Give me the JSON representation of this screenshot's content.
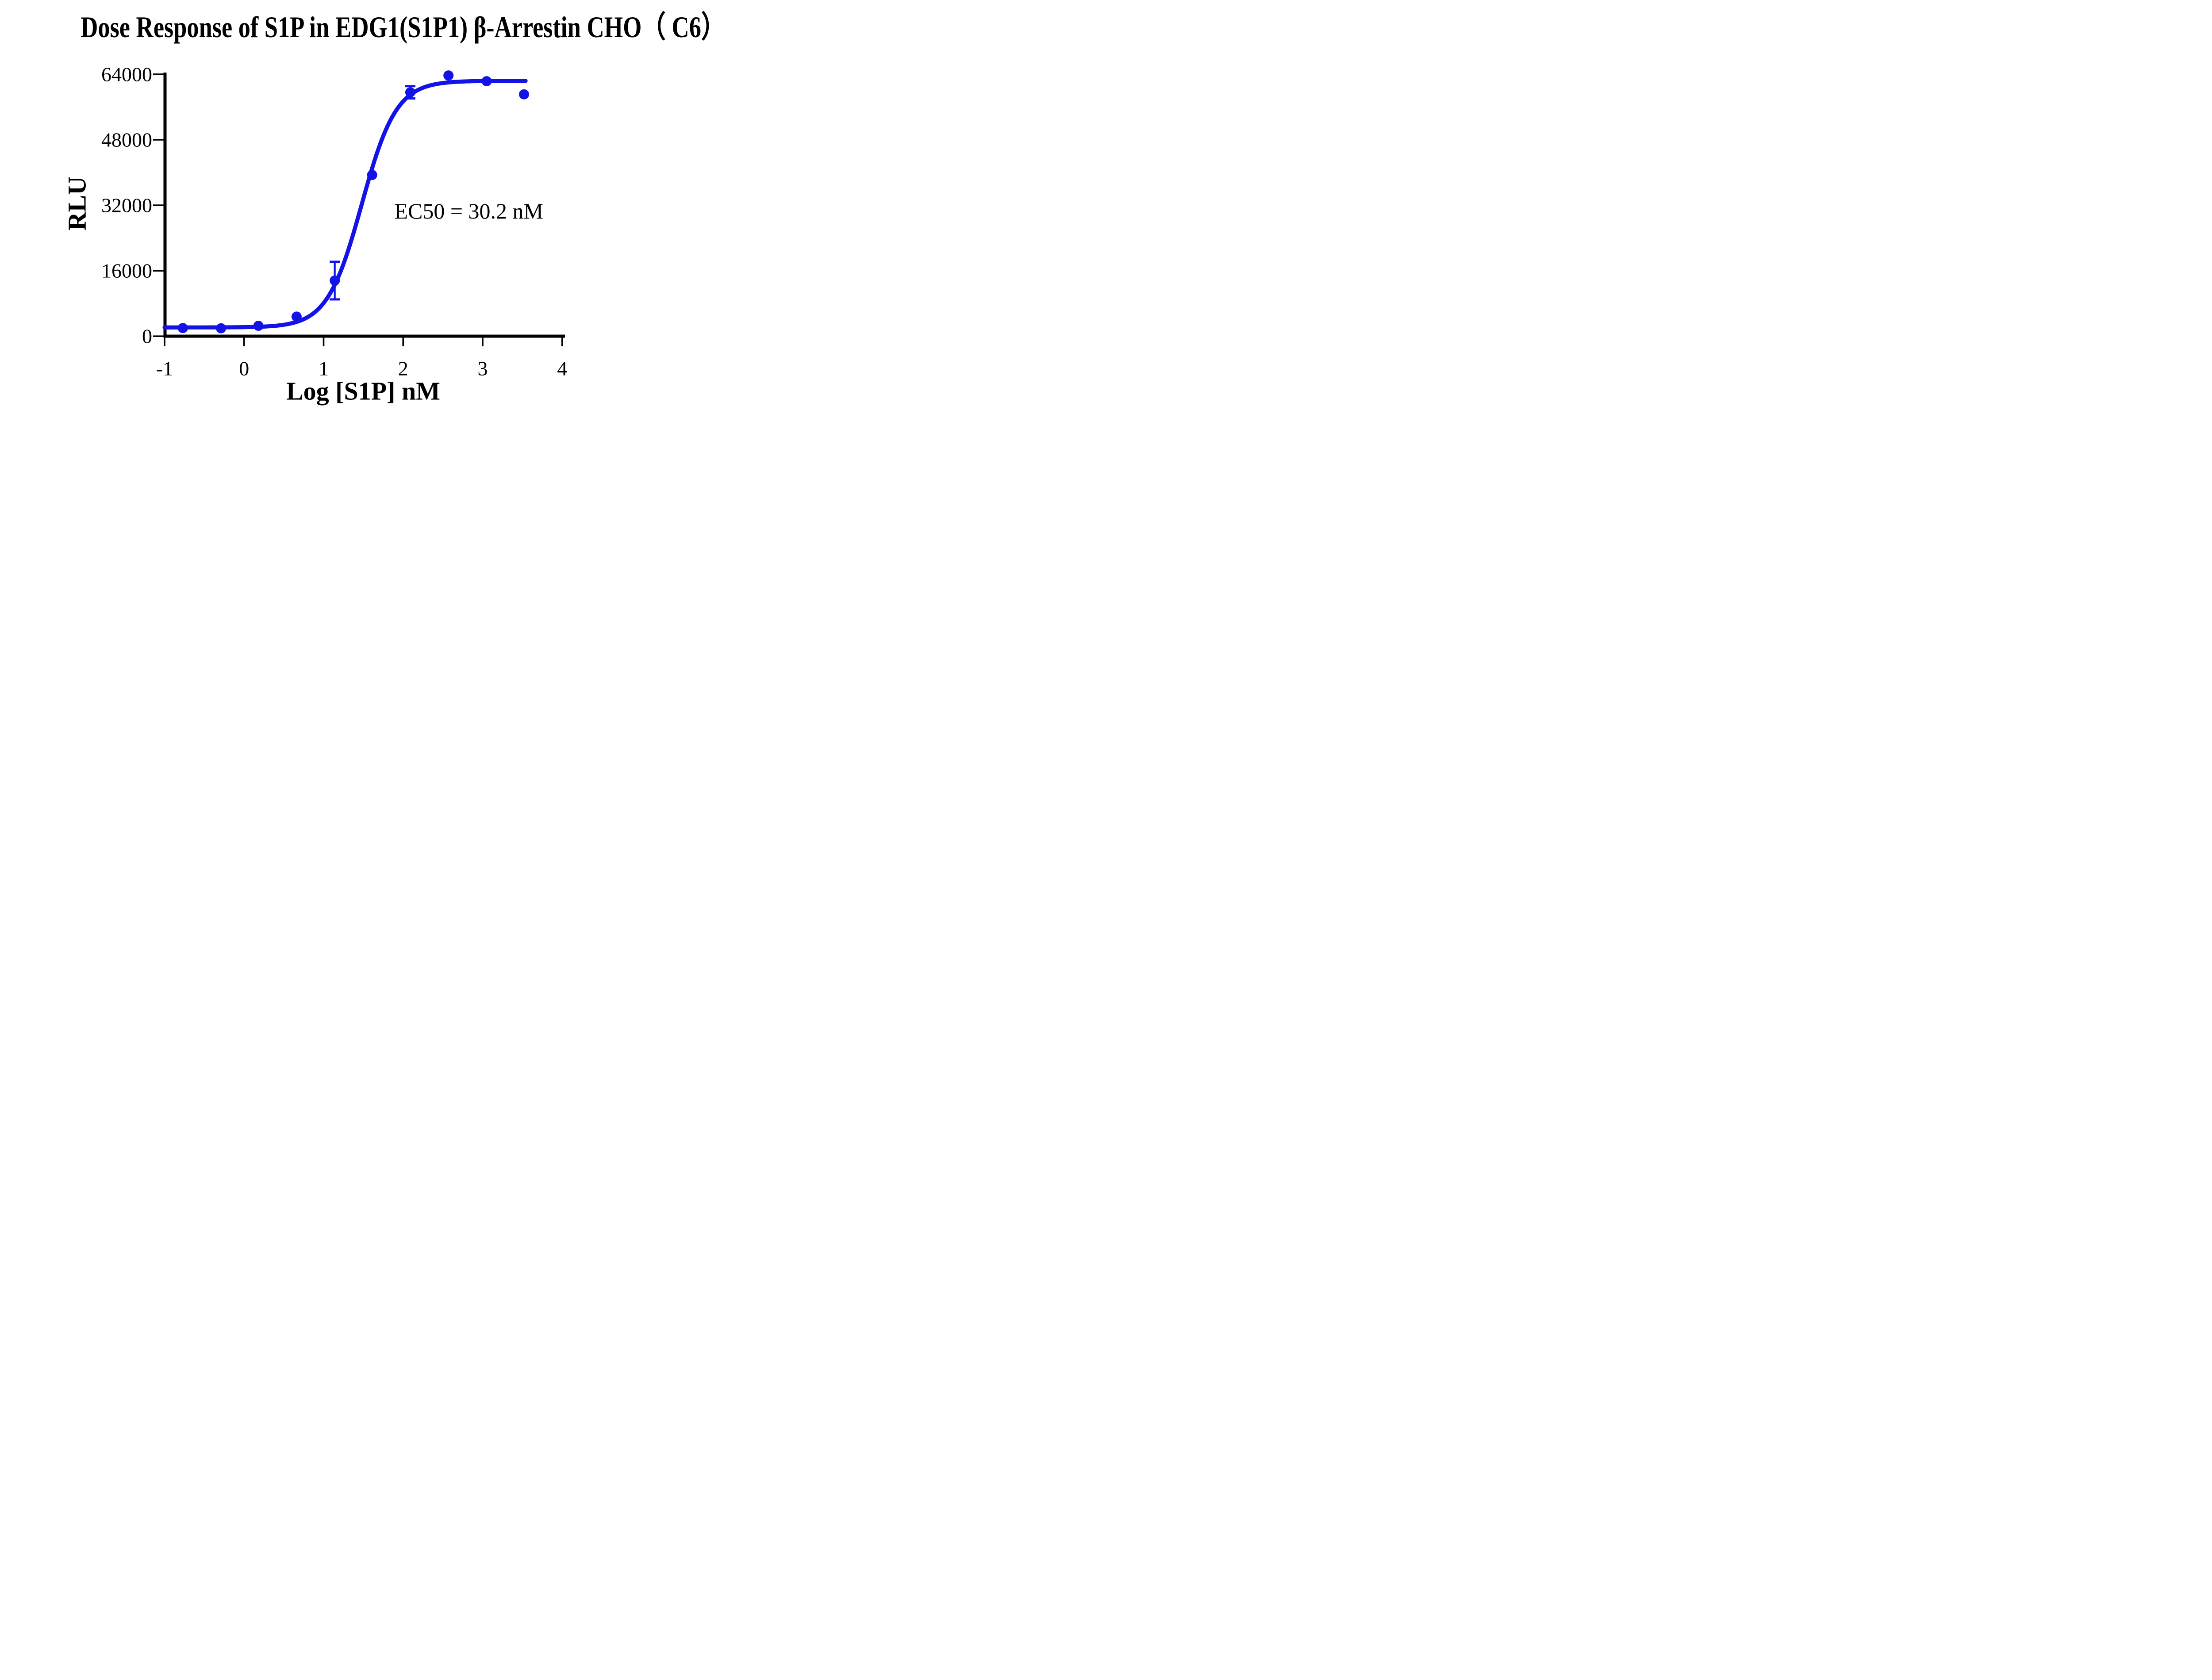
{
  "figure": {
    "background_color": "#FFFFFF",
    "text_color": "#000000",
    "accent_color": "#1313E8"
  },
  "chart_data": {
    "type": "scatter",
    "curve_type": "four-parameter logistic dose-response fit",
    "title": "Dose Response of S1P in EDG1(S1P1) β-Arrestin CHO（ C6）",
    "xlabel": "Log [S1P] nM",
    "ylabel": "RLU",
    "xlim": [
      -1,
      4
    ],
    "ylim": [
      0,
      64000
    ],
    "x_ticks": [
      -1,
      0,
      1,
      2,
      3,
      4
    ],
    "y_ticks": [
      64000,
      48000,
      32000,
      16000,
      0
    ],
    "grid": false,
    "legend": "none",
    "marker_color": "#1313E8",
    "line_color": "#1313E8",
    "points": [
      {
        "log_conc": -0.77,
        "conc_nM": 0.17,
        "rlu": 2000
      },
      {
        "log_conc": -0.29,
        "conc_nM": 0.51,
        "rlu": 1950
      },
      {
        "log_conc": 0.18,
        "conc_nM": 1.52,
        "rlu": 2550
      },
      {
        "log_conc": 0.66,
        "conc_nM": 4.57,
        "rlu": 4800
      },
      {
        "log_conc": 1.14,
        "conc_nM": 13.7,
        "rlu": 13600,
        "yerr": 4600
      },
      {
        "log_conc": 1.61,
        "conc_nM": 41.2,
        "rlu": 39400
      },
      {
        "log_conc": 2.09,
        "conc_nM": 123,
        "rlu": 59600,
        "yerr": 1500
      },
      {
        "log_conc": 2.57,
        "conc_nM": 370,
        "rlu": 63700
      },
      {
        "log_conc": 3.05,
        "conc_nM": 1111,
        "rlu": 62300
      },
      {
        "log_conc": 3.52,
        "conc_nM": 3333,
        "rlu": 59100
      }
    ],
    "fit": {
      "bottom": 2150,
      "top": 62400,
      "log_ec50": 1.48,
      "hill_slope": 2.0,
      "ec50_nM": 30.2,
      "curve_x_range": [
        -1,
        3.54
      ]
    },
    "annotation": {
      "text": "EC50 = 30.2 nM",
      "x_log": 1.89,
      "y_rlu": 30600
    }
  }
}
